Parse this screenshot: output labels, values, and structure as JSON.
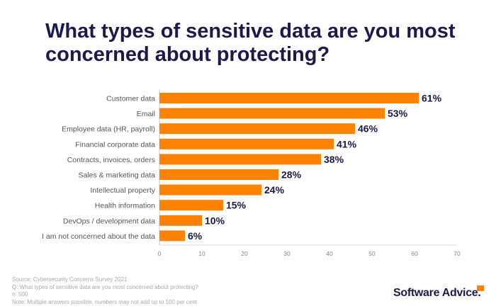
{
  "chart_data": {
    "type": "bar",
    "orientation": "horizontal",
    "title": "What types of sensitive data are you most concerned about protecting?",
    "categories": [
      "Customer data",
      "Email",
      "Employee data (HR, payroll)",
      "Financial corporate data",
      "Contracts, invoices, orders",
      "Sales & marketing data",
      "Intellectual property",
      "Health information",
      "DevOps / development data",
      "I am not concerned about the data"
    ],
    "values": [
      61,
      53,
      46,
      41,
      38,
      28,
      24,
      15,
      10,
      6
    ],
    "data_labels": [
      "61%",
      "53%",
      "46%",
      "41%",
      "38%",
      "28%",
      "24%",
      "15%",
      "10%",
      "6%"
    ],
    "xlim": [
      0,
      70
    ],
    "xticks": [
      0,
      10,
      20,
      30,
      40,
      50,
      60,
      70
    ],
    "grid": false,
    "bar_color": "#ff8200",
    "label_color": "#1b1a4a"
  },
  "footer": {
    "source": "Source: Cybersecurity Concerns Survey 2021",
    "question": "Q: What types of sensitive data are you most concerned about protecting?",
    "n": "n: 500",
    "note": "Note: Multiple answers possible, numbers may not add up to 100 per cent"
  },
  "logo": {
    "text": "Software Advice."
  }
}
